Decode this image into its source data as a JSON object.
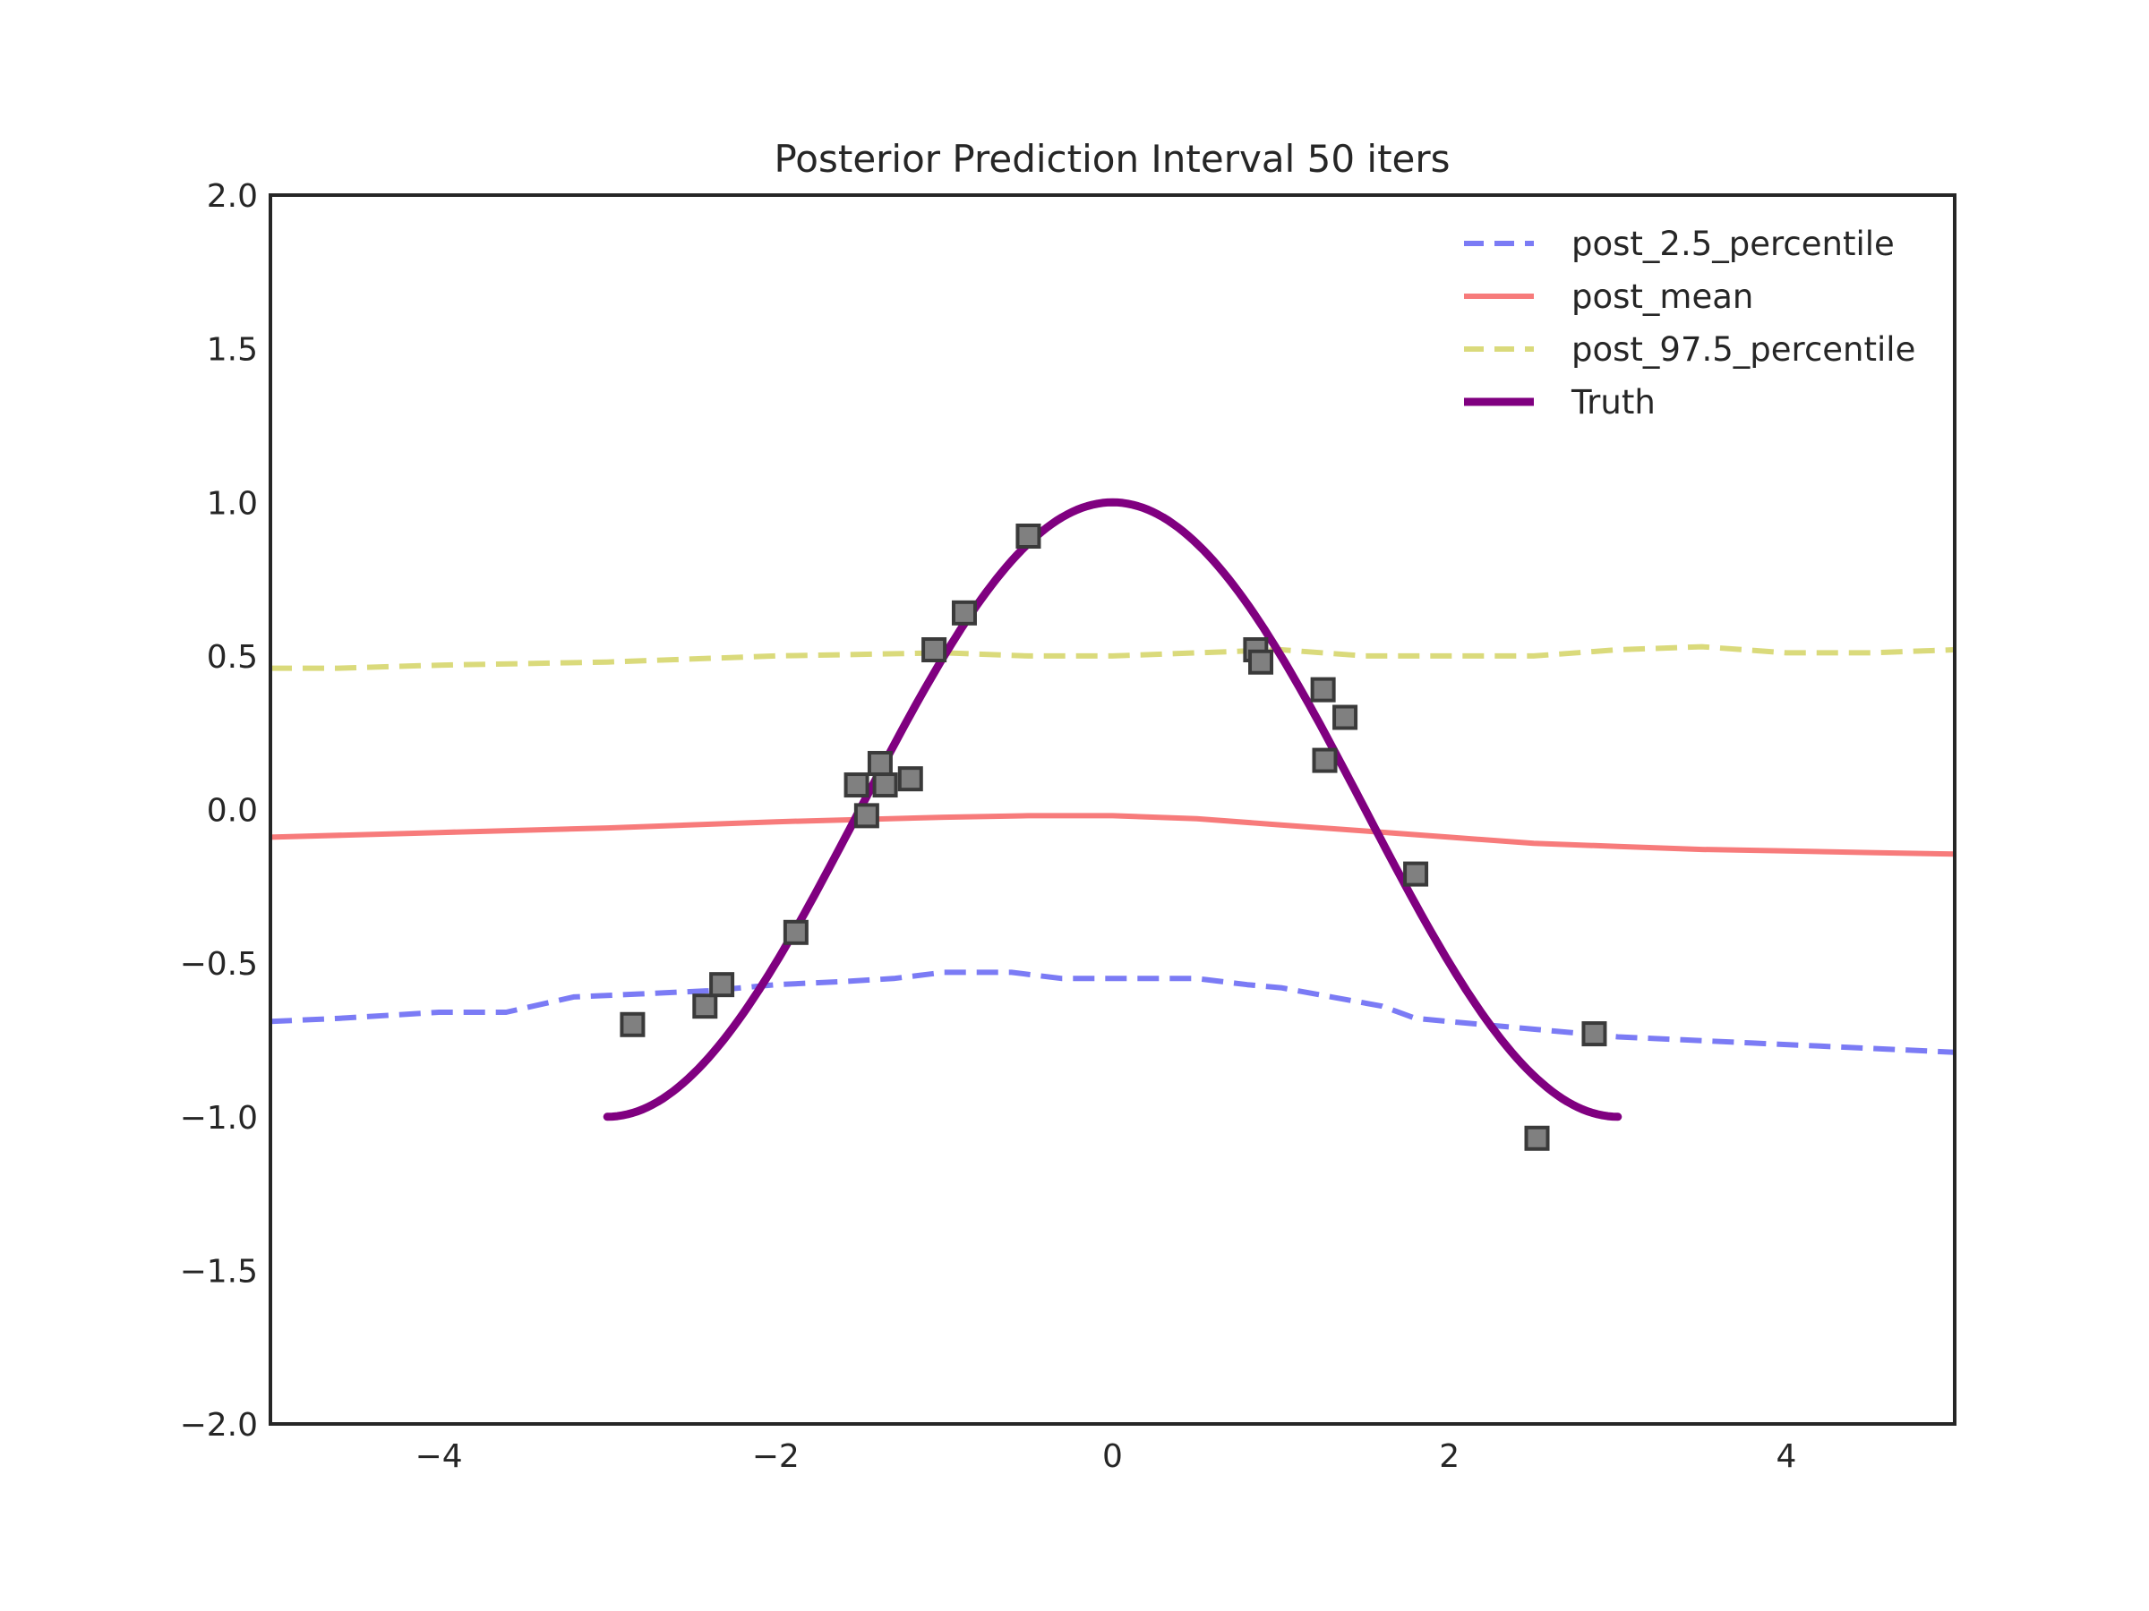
{
  "chart_data": {
    "type": "line",
    "title": "Posterior Prediction Interval 50 iters",
    "xlabel": "",
    "ylabel": "",
    "xlim": [
      -5,
      5
    ],
    "ylim": [
      -2,
      2
    ],
    "xticks": [
      -4,
      -2,
      0,
      2,
      4
    ],
    "xtick_labels": [
      "−4",
      "−2",
      "0",
      "2",
      "4"
    ],
    "yticks": [
      -2.0,
      -1.5,
      -1.0,
      -0.5,
      0.0,
      0.5,
      1.0,
      1.5,
      2.0
    ],
    "ytick_labels": [
      "−2.0",
      "−1.5",
      "−1.0",
      "−0.5",
      "0.0",
      "0.5",
      "1.0",
      "1.5",
      "2.0"
    ],
    "grid": false,
    "legend_position": "top-right",
    "series": [
      {
        "name": "post_2.5_percentile",
        "style": "dashed",
        "color": "#7b7bf5",
        "x": [
          -5.0,
          -4.6,
          -4.0,
          -3.6,
          -3.2,
          -2.8,
          -2.4,
          -2.0,
          -1.6,
          -1.3,
          -1.0,
          -0.6,
          -0.3,
          0.0,
          0.3,
          0.5,
          0.8,
          1.0,
          1.3,
          1.6,
          1.8,
          2.2,
          2.6,
          3.0,
          3.4,
          3.8,
          4.2,
          4.6,
          5.0
        ],
        "y": [
          -0.69,
          -0.68,
          -0.66,
          -0.66,
          -0.61,
          -0.6,
          -0.59,
          -0.57,
          -0.56,
          -0.55,
          -0.53,
          -0.53,
          -0.55,
          -0.55,
          -0.55,
          -0.55,
          -0.57,
          -0.58,
          -0.61,
          -0.64,
          -0.68,
          -0.7,
          -0.72,
          -0.74,
          -0.75,
          -0.76,
          -0.77,
          -0.78,
          -0.79
        ]
      },
      {
        "name": "post_mean",
        "style": "solid",
        "color": "#f77b7b",
        "x": [
          -5.0,
          -4.0,
          -3.0,
          -2.0,
          -1.0,
          -0.5,
          0.0,
          0.5,
          1.0,
          1.5,
          2.0,
          2.5,
          3.0,
          3.5,
          4.0,
          4.5,
          5.0
        ],
        "y": [
          -0.09,
          -0.075,
          -0.06,
          -0.04,
          -0.025,
          -0.02,
          -0.02,
          -0.03,
          -0.05,
          -0.07,
          -0.09,
          -0.11,
          -0.12,
          -0.13,
          -0.135,
          -0.14,
          -0.145
        ]
      },
      {
        "name": "post_97.5_percentile",
        "style": "dashed",
        "color": "#dada7b",
        "x": [
          -5.0,
          -4.6,
          -4.0,
          -3.0,
          -2.0,
          -1.0,
          -0.5,
          0.0,
          0.5,
          1.0,
          1.5,
          2.0,
          2.5,
          3.0,
          3.5,
          4.0,
          4.5,
          5.0
        ],
        "y": [
          0.46,
          0.46,
          0.47,
          0.48,
          0.5,
          0.51,
          0.5,
          0.5,
          0.51,
          0.52,
          0.5,
          0.5,
          0.5,
          0.52,
          0.53,
          0.51,
          0.51,
          0.52
        ]
      },
      {
        "name": "Truth",
        "style": "solid",
        "color": "#800080",
        "function": "cos(pi*x/3)",
        "x_range": [
          -3,
          3
        ]
      }
    ],
    "scatter": {
      "marker": "square",
      "color": "#4d4d4d",
      "points": [
        {
          "x": -2.85,
          "y": -0.7
        },
        {
          "x": -2.42,
          "y": -0.64
        },
        {
          "x": -2.32,
          "y": -0.57
        },
        {
          "x": -1.88,
          "y": -0.4
        },
        {
          "x": -1.52,
          "y": 0.08
        },
        {
          "x": -1.46,
          "y": -0.02
        },
        {
          "x": -1.38,
          "y": 0.15
        },
        {
          "x": -1.35,
          "y": 0.08
        },
        {
          "x": -1.2,
          "y": 0.1
        },
        {
          "x": -1.06,
          "y": 0.52
        },
        {
          "x": -0.88,
          "y": 0.64
        },
        {
          "x": -0.5,
          "y": 0.89
        },
        {
          "x": 0.85,
          "y": 0.52
        },
        {
          "x": 0.88,
          "y": 0.48
        },
        {
          "x": 1.25,
          "y": 0.39
        },
        {
          "x": 1.26,
          "y": 0.16
        },
        {
          "x": 1.38,
          "y": 0.3
        },
        {
          "x": 1.8,
          "y": -0.21
        },
        {
          "x": 2.52,
          "y": -1.07
        },
        {
          "x": 2.86,
          "y": -0.73
        }
      ]
    }
  }
}
